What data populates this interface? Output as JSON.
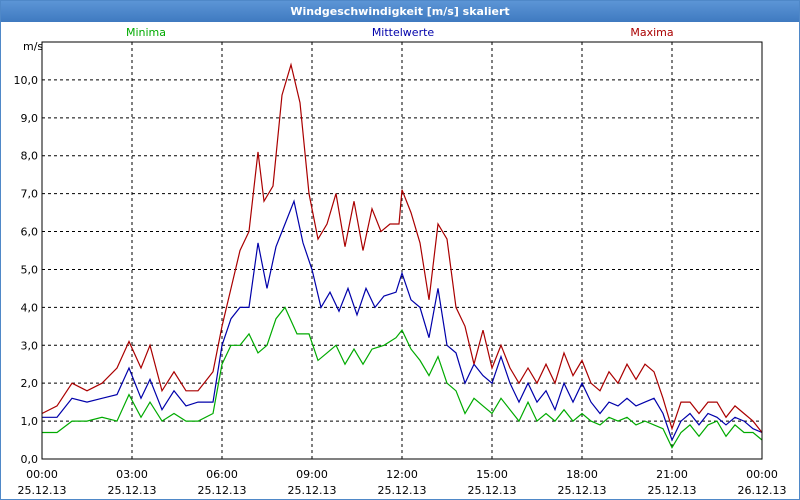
{
  "window": {
    "title": "Windgeschwindigkeit [m/s] skaliert"
  },
  "colors": {
    "plot_border": "#000000",
    "grid": "#000000"
  },
  "chart_data": {
    "type": "line",
    "title": "Windgeschwindigkeit [m/s] skaliert",
    "ylabel": "m/s",
    "xlabel": "",
    "ylim": [
      0,
      11
    ],
    "xlim": [
      0,
      24
    ],
    "grid": true,
    "legend_position": "top",
    "x_ticks": [
      {
        "x": 0,
        "time": "00:00",
        "date": "25.12.13"
      },
      {
        "x": 3,
        "time": "03:00",
        "date": "25.12.13"
      },
      {
        "x": 6,
        "time": "06:00",
        "date": "25.12.13"
      },
      {
        "x": 9,
        "time": "09:00",
        "date": "25.12.13"
      },
      {
        "x": 12,
        "time": "12:00",
        "date": "25.12.13"
      },
      {
        "x": 15,
        "time": "15:00",
        "date": "25.12.13"
      },
      {
        "x": 18,
        "time": "18:00",
        "date": "25.12.13"
      },
      {
        "x": 21,
        "time": "21:00",
        "date": "25.12.13"
      },
      {
        "x": 24,
        "time": "00:00",
        "date": "26.12.13"
      }
    ],
    "y_ticks": [
      {
        "value": 0,
        "label": "0,0"
      },
      {
        "value": 1,
        "label": "1,0"
      },
      {
        "value": 2,
        "label": "2,0"
      },
      {
        "value": 3,
        "label": "3,0"
      },
      {
        "value": 4,
        "label": "4,0"
      },
      {
        "value": 5,
        "label": "5,0"
      },
      {
        "value": 6,
        "label": "6,0"
      },
      {
        "value": 7,
        "label": "7,0"
      },
      {
        "value": 8,
        "label": "8,0"
      },
      {
        "value": 9,
        "label": "9,0"
      },
      {
        "value": 10,
        "label": "10,0"
      }
    ],
    "series": [
      {
        "name": "Minima",
        "color": "#00aa00",
        "legend_align": "left",
        "points": [
          [
            0,
            0.7
          ],
          [
            0.5,
            0.7
          ],
          [
            1,
            1.0
          ],
          [
            1.5,
            1.0
          ],
          [
            2,
            1.1
          ],
          [
            2.5,
            1.0
          ],
          [
            2.9,
            1.7
          ],
          [
            3.3,
            1.1
          ],
          [
            3.6,
            1.5
          ],
          [
            4,
            1.0
          ],
          [
            4.4,
            1.2
          ],
          [
            4.8,
            1.0
          ],
          [
            5.2,
            1.0
          ],
          [
            5.7,
            1.2
          ],
          [
            6,
            2.5
          ],
          [
            6.3,
            3.0
          ],
          [
            6.6,
            3.0
          ],
          [
            6.9,
            3.3
          ],
          [
            7.2,
            2.8
          ],
          [
            7.5,
            3.0
          ],
          [
            7.8,
            3.7
          ],
          [
            8.1,
            4.0
          ],
          [
            8.5,
            3.3
          ],
          [
            8.9,
            3.3
          ],
          [
            9.2,
            2.6
          ],
          [
            9.5,
            2.8
          ],
          [
            9.8,
            3.0
          ],
          [
            10.1,
            2.5
          ],
          [
            10.4,
            2.9
          ],
          [
            10.7,
            2.5
          ],
          [
            11,
            2.9
          ],
          [
            11.4,
            3.0
          ],
          [
            11.8,
            3.2
          ],
          [
            12,
            3.4
          ],
          [
            12.3,
            2.9
          ],
          [
            12.6,
            2.6
          ],
          [
            12.9,
            2.2
          ],
          [
            13.2,
            2.7
          ],
          [
            13.5,
            2.0
          ],
          [
            13.8,
            1.8
          ],
          [
            14.1,
            1.2
          ],
          [
            14.4,
            1.6
          ],
          [
            14.7,
            1.4
          ],
          [
            15,
            1.2
          ],
          [
            15.3,
            1.6
          ],
          [
            15.6,
            1.3
          ],
          [
            15.9,
            1.0
          ],
          [
            16.2,
            1.5
          ],
          [
            16.5,
            1.0
          ],
          [
            16.8,
            1.2
          ],
          [
            17.1,
            1.0
          ],
          [
            17.4,
            1.3
          ],
          [
            17.7,
            1.0
          ],
          [
            18,
            1.2
          ],
          [
            18.3,
            1.0
          ],
          [
            18.6,
            0.9
          ],
          [
            18.9,
            1.1
          ],
          [
            19.2,
            1.0
          ],
          [
            19.5,
            1.1
          ],
          [
            19.8,
            0.9
          ],
          [
            20.1,
            1.0
          ],
          [
            20.4,
            0.9
          ],
          [
            20.7,
            0.8
          ],
          [
            21,
            0.3
          ],
          [
            21.3,
            0.7
          ],
          [
            21.6,
            0.9
          ],
          [
            21.9,
            0.6
          ],
          [
            22.2,
            0.9
          ],
          [
            22.5,
            1.0
          ],
          [
            22.8,
            0.6
          ],
          [
            23.1,
            0.9
          ],
          [
            23.4,
            0.7
          ],
          [
            23.7,
            0.7
          ],
          [
            24,
            0.5
          ]
        ]
      },
      {
        "name": "Mittelwerte",
        "color": "#0000aa",
        "legend_align": "center",
        "points": [
          [
            0,
            1.1
          ],
          [
            0.5,
            1.1
          ],
          [
            1,
            1.6
          ],
          [
            1.5,
            1.5
          ],
          [
            2,
            1.6
          ],
          [
            2.5,
            1.7
          ],
          [
            2.9,
            2.4
          ],
          [
            3.3,
            1.6
          ],
          [
            3.6,
            2.1
          ],
          [
            4,
            1.3
          ],
          [
            4.4,
            1.8
          ],
          [
            4.8,
            1.4
          ],
          [
            5.2,
            1.5
          ],
          [
            5.7,
            1.5
          ],
          [
            6,
            3.0
          ],
          [
            6.3,
            3.7
          ],
          [
            6.6,
            4.0
          ],
          [
            6.9,
            4.0
          ],
          [
            7.2,
            5.7
          ],
          [
            7.5,
            4.5
          ],
          [
            7.8,
            5.6
          ],
          [
            8.1,
            6.2
          ],
          [
            8.4,
            6.8
          ],
          [
            8.7,
            5.7
          ],
          [
            9,
            5.0
          ],
          [
            9.3,
            4.0
          ],
          [
            9.6,
            4.4
          ],
          [
            9.9,
            3.9
          ],
          [
            10.2,
            4.5
          ],
          [
            10.5,
            3.8
          ],
          [
            10.8,
            4.5
          ],
          [
            11.1,
            4.0
          ],
          [
            11.4,
            4.3
          ],
          [
            11.8,
            4.4
          ],
          [
            12,
            4.9
          ],
          [
            12.3,
            4.2
          ],
          [
            12.6,
            4.0
          ],
          [
            12.9,
            3.2
          ],
          [
            13.2,
            4.5
          ],
          [
            13.5,
            3.0
          ],
          [
            13.8,
            2.8
          ],
          [
            14.1,
            2.0
          ],
          [
            14.4,
            2.5
          ],
          [
            14.7,
            2.2
          ],
          [
            15,
            2.0
          ],
          [
            15.3,
            2.7
          ],
          [
            15.6,
            2.0
          ],
          [
            15.9,
            1.5
          ],
          [
            16.2,
            2.0
          ],
          [
            16.5,
            1.5
          ],
          [
            16.8,
            1.8
          ],
          [
            17.1,
            1.3
          ],
          [
            17.4,
            2.0
          ],
          [
            17.7,
            1.5
          ],
          [
            18,
            2.0
          ],
          [
            18.3,
            1.5
          ],
          [
            18.6,
            1.2
          ],
          [
            18.9,
            1.5
          ],
          [
            19.2,
            1.4
          ],
          [
            19.5,
            1.6
          ],
          [
            19.8,
            1.4
          ],
          [
            20.1,
            1.5
          ],
          [
            20.4,
            1.6
          ],
          [
            20.7,
            1.2
          ],
          [
            21,
            0.5
          ],
          [
            21.3,
            1.0
          ],
          [
            21.6,
            1.2
          ],
          [
            21.9,
            0.9
          ],
          [
            22.2,
            1.2
          ],
          [
            22.5,
            1.1
          ],
          [
            22.8,
            0.9
          ],
          [
            23.1,
            1.1
          ],
          [
            23.4,
            1.0
          ],
          [
            23.7,
            0.8
          ],
          [
            24,
            0.7
          ]
        ]
      },
      {
        "name": "Maxima",
        "color": "#aa0000",
        "legend_align": "right",
        "points": [
          [
            0,
            1.2
          ],
          [
            0.5,
            1.4
          ],
          [
            1,
            2.0
          ],
          [
            1.5,
            1.8
          ],
          [
            2,
            2.0
          ],
          [
            2.5,
            2.4
          ],
          [
            2.9,
            3.1
          ],
          [
            3.3,
            2.4
          ],
          [
            3.6,
            3.0
          ],
          [
            4,
            1.8
          ],
          [
            4.4,
            2.3
          ],
          [
            4.8,
            1.8
          ],
          [
            5.2,
            1.8
          ],
          [
            5.7,
            2.3
          ],
          [
            6,
            3.5
          ],
          [
            6.3,
            4.5
          ],
          [
            6.6,
            5.5
          ],
          [
            6.9,
            6.0
          ],
          [
            7.2,
            8.1
          ],
          [
            7.4,
            6.8
          ],
          [
            7.7,
            7.2
          ],
          [
            8,
            9.6
          ],
          [
            8.3,
            10.4
          ],
          [
            8.6,
            9.4
          ],
          [
            8.9,
            7.0
          ],
          [
            9.2,
            5.8
          ],
          [
            9.5,
            6.2
          ],
          [
            9.8,
            7.0
          ],
          [
            10.1,
            5.6
          ],
          [
            10.4,
            6.8
          ],
          [
            10.7,
            5.5
          ],
          [
            11,
            6.6
          ],
          [
            11.3,
            6.0
          ],
          [
            11.6,
            6.2
          ],
          [
            11.9,
            6.2
          ],
          [
            12,
            7.1
          ],
          [
            12.3,
            6.5
          ],
          [
            12.6,
            5.7
          ],
          [
            12.9,
            4.2
          ],
          [
            13.2,
            6.2
          ],
          [
            13.5,
            5.8
          ],
          [
            13.8,
            4.0
          ],
          [
            14.1,
            3.5
          ],
          [
            14.4,
            2.5
          ],
          [
            14.7,
            3.4
          ],
          [
            15,
            2.4
          ],
          [
            15.3,
            3.0
          ],
          [
            15.6,
            2.4
          ],
          [
            15.9,
            2.0
          ],
          [
            16.2,
            2.4
          ],
          [
            16.5,
            2.0
          ],
          [
            16.8,
            2.5
          ],
          [
            17.1,
            2.0
          ],
          [
            17.4,
            2.8
          ],
          [
            17.7,
            2.2
          ],
          [
            18,
            2.6
          ],
          [
            18.3,
            2.0
          ],
          [
            18.6,
            1.8
          ],
          [
            18.9,
            2.3
          ],
          [
            19.2,
            2.0
          ],
          [
            19.5,
            2.5
          ],
          [
            19.8,
            2.1
          ],
          [
            20.1,
            2.5
          ],
          [
            20.4,
            2.3
          ],
          [
            20.7,
            1.6
          ],
          [
            21,
            0.8
          ],
          [
            21.3,
            1.5
          ],
          [
            21.6,
            1.5
          ],
          [
            21.9,
            1.2
          ],
          [
            22.2,
            1.5
          ],
          [
            22.5,
            1.5
          ],
          [
            22.8,
            1.1
          ],
          [
            23.1,
            1.4
          ],
          [
            23.4,
            1.2
          ],
          [
            23.7,
            1.0
          ],
          [
            24,
            0.7
          ]
        ]
      }
    ]
  }
}
